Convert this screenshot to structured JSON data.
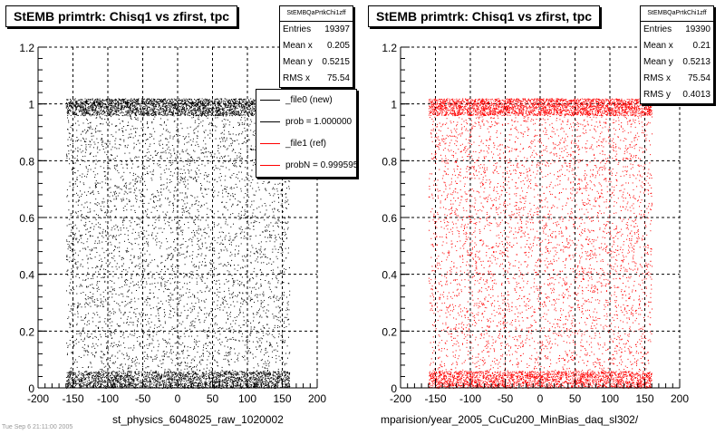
{
  "chart_data": [
    {
      "type": "scatter",
      "title": "StEMB primtrk: Chisq1 vs zfirst, tpc",
      "xlabel": "st_physics_6048025_raw_1020002",
      "ylabel": "",
      "xlim": [
        -200,
        200
      ],
      "ylim": [
        0,
        1.2
      ],
      "xticks": [
        "-200",
        "-150",
        "-100",
        "-50",
        "0",
        "50",
        "100",
        "150",
        "200"
      ],
      "yticks": [
        "0",
        "0.2",
        "0.4",
        "0.6",
        "0.8",
        "1",
        "1.2"
      ],
      "grid": true,
      "marker_color": "#000000",
      "stats": {
        "header": "StEMBQaPrtkChi1zff",
        "rows": [
          {
            "label": "Entries",
            "value": "19397"
          },
          {
            "label": "Mean x",
            "value": "0.205"
          },
          {
            "label": "Mean y",
            "value": "0.5215"
          },
          {
            "label": "RMS x",
            "value": "75.54"
          }
        ]
      },
      "legend": {
        "placement": "top-right",
        "entries": [
          {
            "label": "_file0 (new)",
            "color": "#000000"
          },
          {
            "label": "prob = 1.000000",
            "color": "#000000"
          },
          {
            "label": "_file1 (ref)",
            "color": "#ff0000"
          },
          {
            "label": "probN = 0.999595",
            "color": "#ff0000"
          }
        ]
      },
      "distribution": {
        "x_range": [
          -160,
          160
        ],
        "bands": [
          {
            "y_range": [
              0.96,
              1.02
            ],
            "share": 0.3
          },
          {
            "y_range": [
              0.0,
              0.06
            ],
            "share": 0.25
          },
          {
            "y_range": [
              0.06,
              0.96
            ],
            "share": 0.45
          }
        ]
      }
    },
    {
      "type": "scatter",
      "title": "StEMB primtrk: Chisq1 vs zfirst, tpc",
      "xlabel": "mparision/year_2005_CuCu200_MinBias_daq_sl302/",
      "ylabel": "",
      "xlim": [
        -200,
        200
      ],
      "ylim": [
        0,
        1.2
      ],
      "xticks": [
        "-200",
        "-150",
        "-100",
        "-50",
        "0",
        "50",
        "100",
        "150",
        "200"
      ],
      "yticks": [
        "0",
        "0.2",
        "0.4",
        "0.6",
        "0.8",
        "1",
        "1.2"
      ],
      "grid": true,
      "marker_color": "#ff0000",
      "stats": {
        "header": "StEMBQaPrtkChi1zff",
        "rows": [
          {
            "label": "Entries",
            "value": "19390"
          },
          {
            "label": "Mean x",
            "value": "0.21"
          },
          {
            "label": "Mean y",
            "value": "0.5213"
          },
          {
            "label": "RMS x",
            "value": "75.54"
          },
          {
            "label": "RMS y",
            "value": "0.4013"
          }
        ]
      },
      "distribution": {
        "x_range": [
          -160,
          160
        ],
        "bands": [
          {
            "y_range": [
              0.96,
              1.02
            ],
            "share": 0.3
          },
          {
            "y_range": [
              0.0,
              0.06
            ],
            "share": 0.25
          },
          {
            "y_range": [
              0.06,
              0.96
            ],
            "share": 0.45
          }
        ]
      }
    }
  ],
  "footer": "Tue Sep 6 21:11:00 2005"
}
